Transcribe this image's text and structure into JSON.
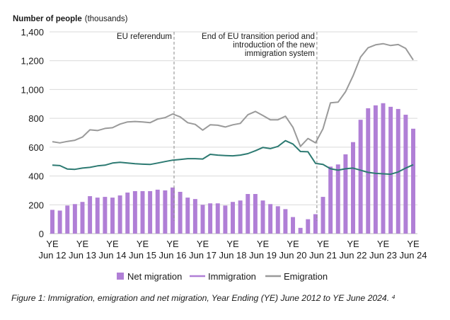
{
  "chart_data": {
    "type": "bar+line",
    "ylabel": "Number of people",
    "ylabel_unit": "(thousands)",
    "ylim": [
      0,
      1400
    ],
    "yticks": [
      "0",
      "200",
      "400",
      "600",
      "800",
      "1,000",
      "1,200",
      "1,400"
    ],
    "xticks": [
      [
        "YE",
        "Jun 12"
      ],
      [
        "YE",
        "Jun 13"
      ],
      [
        "YE",
        "Jun 14"
      ],
      [
        "YE",
        "Jun 15"
      ],
      [
        "YE",
        "Jun 16"
      ],
      [
        "YE",
        "Jun 17"
      ],
      [
        "YE",
        "Jun 18"
      ],
      [
        "YE",
        "Jun 19"
      ],
      [
        "YE",
        "Jun 20"
      ],
      [
        "YE",
        "Jun 21"
      ],
      [
        "YE",
        "Jun 22"
      ],
      [
        "YE",
        "Jun 23"
      ],
      [
        "YE",
        "Jun 24"
      ]
    ],
    "periods_per_year": 4,
    "annotations": [
      {
        "text": "EU referendum",
        "x_index": 16
      },
      {
        "text": "End of EU transition period and introduction of the new immigration system",
        "x_index": 35
      }
    ],
    "legend": [
      "Net migration",
      "Immigration",
      "Emigration"
    ],
    "legend_placement": "bottom",
    "colors": {
      "net": "#b07fd6",
      "immigration": "#b07fd6",
      "emigration": "#9a9a9a",
      "emigration_line": "#2d7a72",
      "grid": "#d9d9d9"
    },
    "series": [
      {
        "name": "Net migration",
        "type": "bar",
        "values": [
          165,
          160,
          195,
          205,
          220,
          260,
          250,
          255,
          250,
          265,
          285,
          295,
          295,
          295,
          305,
          300,
          320,
          290,
          250,
          240,
          200,
          210,
          210,
          195,
          220,
          230,
          275,
          275,
          230,
          205,
          190,
          170,
          115,
          40,
          100,
          135,
          255,
          465,
          480,
          550,
          635,
          790,
          870,
          890,
          905,
          880,
          865,
          825,
          728
        ]
      },
      {
        "name": "Immigration",
        "type": "line",
        "values": [
          638,
          630,
          640,
          648,
          670,
          720,
          715,
          730,
          735,
          760,
          775,
          778,
          775,
          770,
          795,
          805,
          830,
          810,
          770,
          758,
          718,
          755,
          752,
          740,
          755,
          765,
          825,
          848,
          820,
          790,
          790,
          815,
          738,
          605,
          660,
          630,
          728,
          908,
          912,
          985,
          1095,
          1225,
          1290,
          1310,
          1318,
          1305,
          1312,
          1285,
          1205
        ]
      },
      {
        "name": "Emigration",
        "type": "line",
        "values": [
          475,
          472,
          448,
          446,
          455,
          460,
          470,
          475,
          490,
          495,
          490,
          485,
          482,
          480,
          490,
          500,
          510,
          515,
          520,
          520,
          518,
          550,
          545,
          542,
          540,
          545,
          555,
          575,
          598,
          590,
          605,
          645,
          622,
          570,
          568,
          488,
          480,
          450,
          440,
          450,
          455,
          440,
          425,
          418,
          415,
          412,
          428,
          455,
          478
        ]
      }
    ]
  },
  "caption": "Figure 1: Immigration, emigration and net migration, Year Ending (YE) June 2012 to YE June 2024. ⁴"
}
